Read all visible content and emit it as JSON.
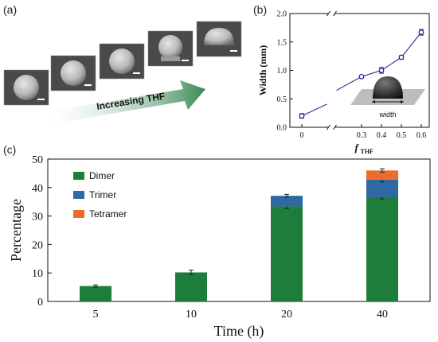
{
  "panels": {
    "a": "(a)",
    "b": "(b)",
    "c": "(c)"
  },
  "panel_a": {
    "arrow_label": "Increasing THF",
    "arrow_color": "#3a8a55",
    "sem_tiles": 5
  },
  "chart_data": [
    {
      "type": "line",
      "panel": "(b)",
      "xlabel_main": "f",
      "xlabel_sub": "THF",
      "ylabel": "Width (mm)",
      "x": [
        0,
        0.3,
        0.4,
        0.5,
        0.6
      ],
      "x_ticks": [
        "0",
        "0.3",
        "0.4",
        "0.5",
        "0.6"
      ],
      "series": [
        {
          "values": [
            0.2,
            0.89,
            1.0,
            1.23,
            1.67
          ],
          "errors": [
            0.04,
            0.02,
            0.05,
            0.03,
            0.05
          ],
          "color": "#1a1a8c"
        }
      ],
      "ylim": [
        0,
        2.0
      ],
      "y_ticks": [
        "0.0",
        "0.5",
        "1.0",
        "1.5",
        "2.0"
      ],
      "axis_break": "between 0 and 0.3",
      "inset_label": "width"
    },
    {
      "type": "bar",
      "stacked": true,
      "panel": "(c)",
      "categories": [
        "5",
        "10",
        "20",
        "40"
      ],
      "xlabel": "Time (h)",
      "ylabel": "Percentage",
      "ylim": [
        0,
        50
      ],
      "y_ticks": [
        "0",
        "10",
        "20",
        "30",
        "40",
        "50"
      ],
      "series": [
        {
          "name": "Dimer",
          "values": [
            5.4,
            10.2,
            33.4,
            36.6
          ],
          "errors": [
            0.4,
            0.8,
            0.8,
            0.6
          ],
          "color": "#1e7d3a"
        },
        {
          "name": "Trimer",
          "values": [
            0,
            0,
            3.7,
            6.2
          ],
          "errors": [
            0,
            0,
            0.5,
            0.8
          ],
          "color": "#2f68a3"
        },
        {
          "name": "Tetramer",
          "values": [
            0,
            0,
            0,
            3.2
          ],
          "errors": [
            0,
            0,
            0,
            0.6
          ],
          "color": "#ee6c2b"
        }
      ],
      "legend_placement": "top-left"
    }
  ]
}
